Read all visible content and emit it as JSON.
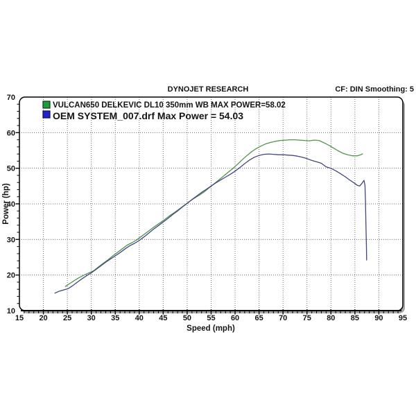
{
  "header": {
    "title": "DYNOJET RESEARCH",
    "correction": "CF: DIN  Smoothing: 5"
  },
  "chart_data": {
    "type": "line",
    "title": "DYNOJET RESEARCH",
    "xlabel": "Speed (mph)",
    "ylabel": "Power (hp)",
    "xlim": [
      15,
      95
    ],
    "ylim": [
      10,
      70
    ],
    "x_tick_labels": [
      "15",
      "20",
      "25",
      "30",
      "35",
      "40",
      "45",
      "50",
      "55",
      "60",
      "65",
      "70",
      "75",
      "80",
      "85",
      "90",
      "95"
    ],
    "y_tick_labels": [
      "10",
      "20",
      "30",
      "40",
      "50",
      "60",
      "70"
    ],
    "x_major_step": 5,
    "x_minor_step": 1,
    "y_major_step": 10,
    "y_minor_step": 2,
    "grid": true,
    "grid_style": "dotted",
    "legend_position": "top-left",
    "colors": {
      "green_line": "#4f9350",
      "blue_line": "#41467e",
      "green_swatch": "#1a9e3a",
      "blue_swatch": "#2222cc",
      "grid": "#6f6f6f",
      "frame": "#000000",
      "shadow": "#a6a6a6",
      "text": "#141414"
    },
    "series": [
      {
        "id": "delkevic",
        "name": "VULCAN650 DELKEVIC DL10 350mm WB MAX POWER=58.02",
        "max_power": 58.02,
        "color": "#4f9350",
        "swatch": "#1a9e3a",
        "points": [
          [
            24.6,
            16.8
          ],
          [
            25.5,
            17.6
          ],
          [
            26.5,
            18.5
          ],
          [
            27.5,
            19.3
          ],
          [
            28.5,
            20.0
          ],
          [
            29.5,
            20.6
          ],
          [
            30.5,
            21.2
          ],
          [
            31.5,
            22.3
          ],
          [
            32.5,
            23.3
          ],
          [
            33.5,
            24.3
          ],
          [
            34.5,
            25.4
          ],
          [
            35.5,
            26.4
          ],
          [
            36.5,
            27.4
          ],
          [
            37.5,
            28.4
          ],
          [
            38.5,
            29.1
          ],
          [
            39.5,
            29.9
          ],
          [
            40.5,
            30.9
          ],
          [
            41.5,
            31.9
          ],
          [
            42.5,
            32.9
          ],
          [
            43.5,
            33.9
          ],
          [
            44.5,
            34.8
          ],
          [
            45.5,
            35.8
          ],
          [
            46.5,
            36.8
          ],
          [
            47.5,
            37.7
          ],
          [
            48.5,
            38.7
          ],
          [
            49.5,
            39.7
          ],
          [
            50.5,
            40.7
          ],
          [
            51.5,
            41.6
          ],
          [
            52.5,
            42.4
          ],
          [
            53.5,
            43.3
          ],
          [
            54.5,
            44.4
          ],
          [
            55.5,
            45.5
          ],
          [
            56.5,
            46.6
          ],
          [
            57.5,
            47.7
          ],
          [
            58.5,
            48.8
          ],
          [
            59.5,
            49.9
          ],
          [
            60.5,
            51.1
          ],
          [
            61.5,
            52.4
          ],
          [
            62.5,
            53.6
          ],
          [
            63.5,
            54.7
          ],
          [
            64.5,
            55.6
          ],
          [
            65.5,
            56.3
          ],
          [
            66.5,
            56.9
          ],
          [
            67.5,
            57.3
          ],
          [
            68.5,
            57.6
          ],
          [
            69.5,
            57.8
          ],
          [
            70.5,
            57.9
          ],
          [
            71.5,
            58.0
          ],
          [
            72.5,
            58.0
          ],
          [
            73.5,
            57.9
          ],
          [
            74.5,
            57.8
          ],
          [
            75.5,
            57.7
          ],
          [
            76.5,
            57.9
          ],
          [
            77.5,
            57.8
          ],
          [
            78.5,
            57.2
          ],
          [
            79.5,
            56.5
          ],
          [
            80.5,
            55.7
          ],
          [
            81.5,
            54.9
          ],
          [
            82.5,
            54.2
          ],
          [
            83.5,
            53.8
          ],
          [
            84.5,
            53.5
          ],
          [
            85.5,
            53.5
          ],
          [
            86.2,
            53.8
          ],
          [
            86.6,
            54.0
          ]
        ]
      },
      {
        "id": "oem",
        "name": "OEM SYSTEM_007.drf Max Power = 54.03",
        "max_power": 54.03,
        "color": "#41467e",
        "swatch": "#2222cc",
        "points": [
          [
            22.4,
            14.9
          ],
          [
            23.2,
            15.4
          ],
          [
            24.2,
            15.8
          ],
          [
            25.2,
            16.2
          ],
          [
            26,
            16.9
          ],
          [
            27,
            17.9
          ],
          [
            28,
            18.9
          ],
          [
            29,
            19.8
          ],
          [
            30,
            20.6
          ],
          [
            31,
            21.6
          ],
          [
            32,
            22.6
          ],
          [
            33,
            23.6
          ],
          [
            34,
            24.5
          ],
          [
            35,
            25.4
          ],
          [
            36,
            26.3
          ],
          [
            37,
            27.3
          ],
          [
            38,
            28.2
          ],
          [
            39,
            28.9
          ],
          [
            40,
            29.7
          ],
          [
            41,
            30.7
          ],
          [
            42,
            31.8
          ],
          [
            43,
            32.9
          ],
          [
            44,
            33.9
          ],
          [
            45,
            34.9
          ],
          [
            46,
            35.9
          ],
          [
            47,
            37.0
          ],
          [
            48,
            38.0
          ],
          [
            49,
            39.1
          ],
          [
            50,
            40.1
          ],
          [
            51,
            41.2
          ],
          [
            52,
            42.2
          ],
          [
            53,
            43.2
          ],
          [
            54,
            44.1
          ],
          [
            55,
            45.0
          ],
          [
            56,
            45.9
          ],
          [
            57,
            46.7
          ],
          [
            58,
            47.5
          ],
          [
            59,
            48.3
          ],
          [
            60,
            49.2
          ],
          [
            61,
            50.2
          ],
          [
            62,
            51.3
          ],
          [
            63,
            52.3
          ],
          [
            64,
            53.1
          ],
          [
            65,
            53.6
          ],
          [
            66,
            53.9
          ],
          [
            67,
            54.0
          ],
          [
            68,
            53.9
          ],
          [
            69,
            53.8
          ],
          [
            70,
            53.8
          ],
          [
            71,
            53.7
          ],
          [
            72,
            53.6
          ],
          [
            73,
            53.4
          ],
          [
            74,
            53.1
          ],
          [
            75,
            52.7
          ],
          [
            76,
            52.2
          ],
          [
            77,
            51.8
          ],
          [
            78,
            51.4
          ],
          [
            79,
            50.4
          ],
          [
            80,
            50.0
          ],
          [
            81,
            49.3
          ],
          [
            82,
            48.5
          ],
          [
            83,
            47.6
          ],
          [
            84,
            46.6
          ],
          [
            85,
            45.7
          ],
          [
            85.5,
            45.2
          ],
          [
            86,
            45.0
          ],
          [
            86.5,
            45.8
          ],
          [
            86.9,
            46.6
          ],
          [
            87.1,
            45.2
          ],
          [
            87.2,
            41.0
          ],
          [
            87.3,
            34.0
          ],
          [
            87.4,
            28.0
          ],
          [
            87.45,
            24.2
          ]
        ]
      }
    ]
  }
}
